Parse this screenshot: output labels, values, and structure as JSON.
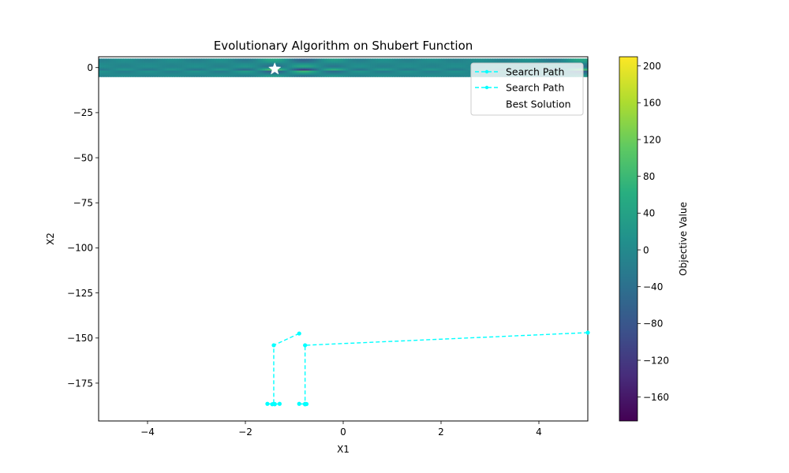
{
  "chart_data": {
    "type": "line",
    "title": "Evolutionary Algorithm on Shubert Function",
    "xlabel": "X1",
    "ylabel": "X2",
    "xlim": [
      -5,
      5
    ],
    "ylim": [
      -196,
      6
    ],
    "xticks": [
      -4,
      -2,
      0,
      2,
      4
    ],
    "yticks": [
      0,
      -25,
      -50,
      -75,
      -100,
      -125,
      -150,
      -175
    ],
    "grid": false,
    "legend_placement": "top-right",
    "heatmap": {
      "x_range": [
        -5,
        5
      ],
      "y_range": [
        -5,
        5
      ],
      "description_values": "Shubert function objective values over X1, X2 in [-5, 5]"
    },
    "colorbar": {
      "label": "Objective Value",
      "range": [
        -186,
        210
      ],
      "ticks": [
        200,
        160,
        120,
        80,
        40,
        0,
        -40,
        -80,
        -120,
        -160
      ],
      "colormap": "viridis"
    },
    "series": [
      {
        "name": "Search Path",
        "color": "#00FFFF",
        "style": "dashed",
        "marker": "dot",
        "x": [
          -0.9,
          -1.42,
          -1.42,
          -1.55,
          -1.4,
          -1.3,
          -1.45,
          -1.4
        ],
        "y": [
          -147.5,
          -154,
          -186.5,
          -186.5,
          -186.7,
          -186.5,
          -186.7,
          -186.6
        ]
      },
      {
        "name": "Search Path",
        "color": "#00FFFF",
        "style": "dashed",
        "marker": "dot",
        "x": [
          5.0,
          -0.78,
          -0.78,
          -0.9,
          -0.78,
          -0.75,
          -0.78
        ],
        "y": [
          -147.0,
          -154,
          -186.5,
          -186.5,
          -186.7,
          -186.6,
          -186.7
        ]
      }
    ],
    "best_solution": {
      "name": "Best Solution",
      "x": -1.4,
      "y": -0.8,
      "marker": "star",
      "color": "#FFFFFF"
    }
  }
}
